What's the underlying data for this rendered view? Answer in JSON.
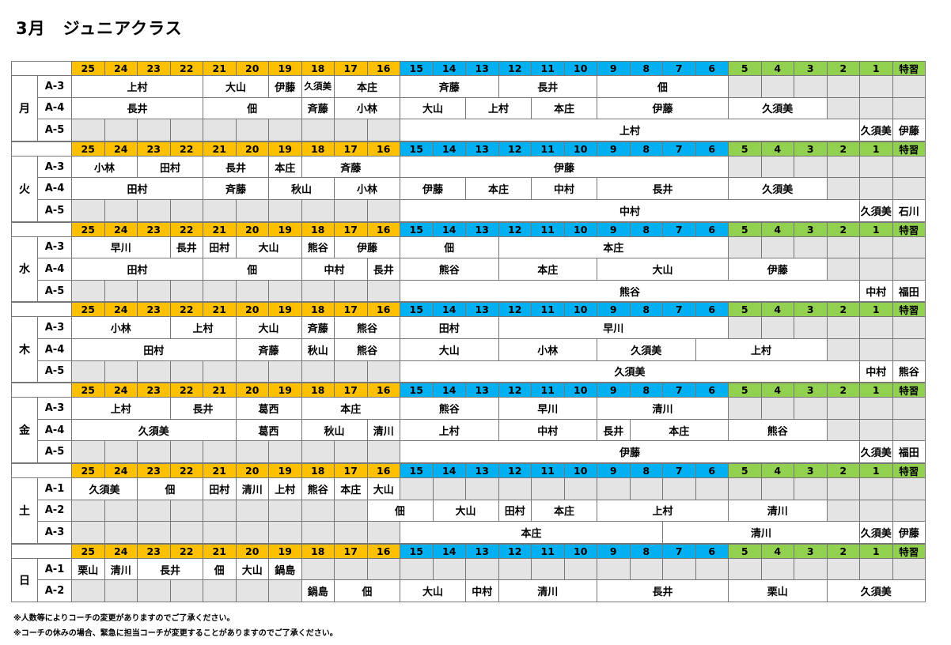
{
  "title": "3月　ジュニアクラス",
  "header_labels": [
    "25",
    "24",
    "23",
    "22",
    "21",
    "20",
    "19",
    "18",
    "17",
    "16",
    "15",
    "14",
    "13",
    "12",
    "11",
    "10",
    "9",
    "8",
    "7",
    "6",
    "5",
    "4",
    "3",
    "2",
    "1",
    "特習"
  ],
  "colors": {
    "orange": "#ffc000",
    "blue": "#00b0f0",
    "green": "#92d050",
    "grey": "#e4e4e4",
    "border": "#777777"
  },
  "days": [
    {
      "name": "月",
      "rows": [
        {
          "label": "A-3",
          "cells": [
            {
              "t": "上村",
              "s": 0,
              "e": 4
            },
            {
              "t": "大山",
              "s": 4,
              "e": 6
            },
            {
              "t": "伊藤",
              "s": 6,
              "e": 7
            },
            {
              "t": "久須美",
              "s": 7,
              "e": 8,
              "small": true
            },
            {
              "t": "本庄",
              "s": 8,
              "e": 10
            },
            {
              "t": "斉藤",
              "s": 10,
              "e": 13
            },
            {
              "t": "長井",
              "s": 13,
              "e": 16
            },
            {
              "t": "佃",
              "s": 16,
              "e": 20
            }
          ]
        },
        {
          "label": "A-4",
          "cells": [
            {
              "t": "長井",
              "s": 0,
              "e": 4
            },
            {
              "t": "佃",
              "s": 4,
              "e": 7
            },
            {
              "t": "斉藤",
              "s": 7,
              "e": 8
            },
            {
              "t": "小林",
              "s": 8,
              "e": 10
            },
            {
              "t": "大山",
              "s": 10,
              "e": 12
            },
            {
              "t": "上村",
              "s": 12,
              "e": 14
            },
            {
              "t": "本庄",
              "s": 14,
              "e": 16
            },
            {
              "t": "伊藤",
              "s": 16,
              "e": 20
            },
            {
              "t": "久須美",
              "s": 20,
              "e": 23
            }
          ]
        },
        {
          "label": "A-5",
          "cells": [
            {
              "t": "上村",
              "s": 10,
              "e": 24
            },
            {
              "t": "久須美",
              "s": 24,
              "e": 25
            },
            {
              "t": "伊藤",
              "s": 25,
              "e": 26
            }
          ]
        }
      ]
    },
    {
      "name": "火",
      "rows": [
        {
          "label": "A-3",
          "cells": [
            {
              "t": "小林",
              "s": 0,
              "e": 2
            },
            {
              "t": "田村",
              "s": 2,
              "e": 4
            },
            {
              "t": "長井",
              "s": 4,
              "e": 6
            },
            {
              "t": "本庄",
              "s": 6,
              "e": 7
            },
            {
              "t": "斉藤",
              "s": 7,
              "e": 10
            },
            {
              "t": "伊藤",
              "s": 10,
              "e": 20
            }
          ]
        },
        {
          "label": "A-4",
          "cells": [
            {
              "t": "田村",
              "s": 0,
              "e": 4
            },
            {
              "t": "斉藤",
              "s": 4,
              "e": 6
            },
            {
              "t": "秋山",
              "s": 6,
              "e": 8
            },
            {
              "t": "小林",
              "s": 8,
              "e": 10
            },
            {
              "t": "伊藤",
              "s": 10,
              "e": 12
            },
            {
              "t": "本庄",
              "s": 12,
              "e": 14
            },
            {
              "t": "中村",
              "s": 14,
              "e": 16
            },
            {
              "t": "長井",
              "s": 16,
              "e": 20
            },
            {
              "t": "久須美",
              "s": 20,
              "e": 23
            }
          ]
        },
        {
          "label": "A-5",
          "cells": [
            {
              "t": "中村",
              "s": 10,
              "e": 24
            },
            {
              "t": "久須美",
              "s": 24,
              "e": 25
            },
            {
              "t": "石川",
              "s": 25,
              "e": 26
            }
          ]
        }
      ]
    },
    {
      "name": "水",
      "rows": [
        {
          "label": "A-3",
          "cells": [
            {
              "t": "早川",
              "s": 0,
              "e": 3
            },
            {
              "t": "長井",
              "s": 3,
              "e": 4
            },
            {
              "t": "田村",
              "s": 4,
              "e": 5
            },
            {
              "t": "大山",
              "s": 5,
              "e": 7
            },
            {
              "t": "熊谷",
              "s": 7,
              "e": 8
            },
            {
              "t": "伊藤",
              "s": 8,
              "e": 10
            },
            {
              "t": "佃",
              "s": 10,
              "e": 13
            },
            {
              "t": "本庄",
              "s": 13,
              "e": 20
            }
          ]
        },
        {
          "label": "A-4",
          "cells": [
            {
              "t": "田村",
              "s": 0,
              "e": 4
            },
            {
              "t": "佃",
              "s": 4,
              "e": 7
            },
            {
              "t": "中村",
              "s": 7,
              "e": 9
            },
            {
              "t": "長井",
              "s": 9,
              "e": 10
            },
            {
              "t": "熊谷",
              "s": 10,
              "e": 13
            },
            {
              "t": "本庄",
              "s": 13,
              "e": 16
            },
            {
              "t": "大山",
              "s": 16,
              "e": 20
            },
            {
              "t": "伊藤",
              "s": 20,
              "e": 23
            }
          ]
        },
        {
          "label": "A-5",
          "cells": [
            {
              "t": "熊谷",
              "s": 10,
              "e": 24
            },
            {
              "t": "中村",
              "s": 24,
              "e": 25
            },
            {
              "t": "福田",
              "s": 25,
              "e": 26
            }
          ]
        }
      ]
    },
    {
      "name": "木",
      "rows": [
        {
          "label": "A-3",
          "cells": [
            {
              "t": "小林",
              "s": 0,
              "e": 3
            },
            {
              "t": "上村",
              "s": 3,
              "e": 5
            },
            {
              "t": "大山",
              "s": 5,
              "e": 7
            },
            {
              "t": "斉藤",
              "s": 7,
              "e": 8
            },
            {
              "t": "熊谷",
              "s": 8,
              "e": 10
            },
            {
              "t": "田村",
              "s": 10,
              "e": 13
            },
            {
              "t": "早川",
              "s": 13,
              "e": 20
            }
          ]
        },
        {
          "label": "A-4",
          "cells": [
            {
              "t": "田村",
              "s": 0,
              "e": 5
            },
            {
              "t": "斉藤",
              "s": 5,
              "e": 7
            },
            {
              "t": "秋山",
              "s": 7,
              "e": 8
            },
            {
              "t": "熊谷",
              "s": 8,
              "e": 10
            },
            {
              "t": "大山",
              "s": 10,
              "e": 13
            },
            {
              "t": "小林",
              "s": 13,
              "e": 16
            },
            {
              "t": "久須美",
              "s": 16,
              "e": 19
            },
            {
              "t": "上村",
              "s": 19,
              "e": 23
            }
          ]
        },
        {
          "label": "A-5",
          "cells": [
            {
              "t": "久須美",
              "s": 10,
              "e": 24
            },
            {
              "t": "中村",
              "s": 24,
              "e": 25
            },
            {
              "t": "熊谷",
              "s": 25,
              "e": 26
            }
          ]
        }
      ]
    },
    {
      "name": "金",
      "rows": [
        {
          "label": "A-3",
          "cells": [
            {
              "t": "上村",
              "s": 0,
              "e": 3
            },
            {
              "t": "長井",
              "s": 3,
              "e": 5
            },
            {
              "t": "葛西",
              "s": 5,
              "e": 7
            },
            {
              "t": "本庄",
              "s": 7,
              "e": 10
            },
            {
              "t": "熊谷",
              "s": 10,
              "e": 13
            },
            {
              "t": "早川",
              "s": 13,
              "e": 16
            },
            {
              "t": "清川",
              "s": 16,
              "e": 20
            }
          ]
        },
        {
          "label": "A-4",
          "cells": [
            {
              "t": "久須美",
              "s": 0,
              "e": 5
            },
            {
              "t": "葛西",
              "s": 5,
              "e": 7
            },
            {
              "t": "秋山",
              "s": 7,
              "e": 9
            },
            {
              "t": "清川",
              "s": 9,
              "e": 10
            },
            {
              "t": "上村",
              "s": 10,
              "e": 13
            },
            {
              "t": "中村",
              "s": 13,
              "e": 16
            },
            {
              "t": "長井",
              "s": 16,
              "e": 17
            },
            {
              "t": "本庄",
              "s": 17,
              "e": 20
            },
            {
              "t": "熊谷",
              "s": 20,
              "e": 23
            }
          ]
        },
        {
          "label": "A-5",
          "cells": [
            {
              "t": "伊藤",
              "s": 10,
              "e": 24
            },
            {
              "t": "久須美",
              "s": 24,
              "e": 25
            },
            {
              "t": "福田",
              "s": 25,
              "e": 26
            }
          ]
        }
      ]
    },
    {
      "name": "土",
      "rows": [
        {
          "label": "A-1",
          "cells": [
            {
              "t": "久須美",
              "s": 0,
              "e": 2
            },
            {
              "t": "佃",
              "s": 2,
              "e": 4
            },
            {
              "t": "田村",
              "s": 4,
              "e": 5
            },
            {
              "t": "清川",
              "s": 5,
              "e": 6
            },
            {
              "t": "上村",
              "s": 6,
              "e": 7
            },
            {
              "t": "熊谷",
              "s": 7,
              "e": 8
            },
            {
              "t": "本庄",
              "s": 8,
              "e": 9
            },
            {
              "t": "大山",
              "s": 9,
              "e": 10
            }
          ]
        },
        {
          "label": "A-2",
          "cells": [
            {
              "t": "佃",
              "s": 9,
              "e": 11
            },
            {
              "t": "大山",
              "s": 11,
              "e": 13
            },
            {
              "t": "田村",
              "s": 13,
              "e": 14
            },
            {
              "t": "本庄",
              "s": 14,
              "e": 16
            },
            {
              "t": "上村",
              "s": 16,
              "e": 20
            },
            {
              "t": "清川",
              "s": 20,
              "e": 23
            }
          ]
        },
        {
          "label": "A-3",
          "cells": [
            {
              "t": "本庄",
              "s": 10,
              "e": 18
            },
            {
              "t": "清川",
              "s": 18,
              "e": 24
            },
            {
              "t": "久須美",
              "s": 24,
              "e": 25
            },
            {
              "t": "伊藤",
              "s": 25,
              "e": 26
            }
          ]
        }
      ]
    },
    {
      "name": "日",
      "rows": [
        {
          "label": "A-1",
          "cells": [
            {
              "t": "栗山",
              "s": 0,
              "e": 1
            },
            {
              "t": "清川",
              "s": 1,
              "e": 2
            },
            {
              "t": "長井",
              "s": 2,
              "e": 4
            },
            {
              "t": "佃",
              "s": 4,
              "e": 5
            },
            {
              "t": "大山",
              "s": 5,
              "e": 6
            },
            {
              "t": "鍋島",
              "s": 6,
              "e": 7
            }
          ]
        },
        {
          "label": "A-2",
          "cells": [
            {
              "t": "鍋島",
              "s": 7,
              "e": 8
            },
            {
              "t": "佃",
              "s": 8,
              "e": 10
            },
            {
              "t": "大山",
              "s": 10,
              "e": 12
            },
            {
              "t": "中村",
              "s": 12,
              "e": 13
            },
            {
              "t": "清川",
              "s": 13,
              "e": 16
            },
            {
              "t": "長井",
              "s": 16,
              "e": 20
            },
            {
              "t": "栗山",
              "s": 20,
              "e": 23
            },
            {
              "t": "久須美",
              "s": 23,
              "e": 26
            }
          ]
        }
      ]
    }
  ],
  "notes": [
    "※人数等によりコーチの変更がありますのでご了承ください。",
    "※コーチの休みの場合、緊急に担当コーチが変更することがありますのでご了承ください。"
  ]
}
